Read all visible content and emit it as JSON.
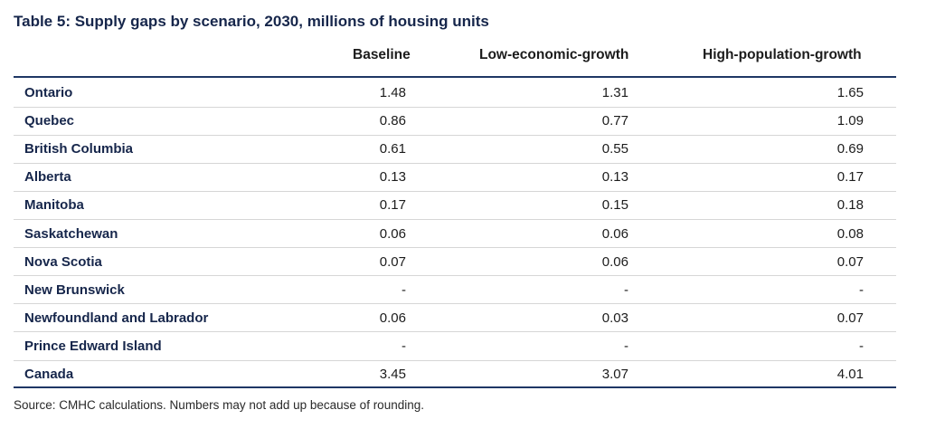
{
  "table": {
    "title": "Table 5: Supply gaps by scenario, 2030, millions of housing units",
    "columns": [
      "Baseline",
      "Low-economic-growth",
      "High-population-growth"
    ],
    "rows": [
      {
        "name": "Ontario",
        "baseline": "1.48",
        "low": "1.31",
        "high": "1.65"
      },
      {
        "name": "Quebec",
        "baseline": "0.86",
        "low": "0.77",
        "high": "1.09"
      },
      {
        "name": "British Columbia",
        "baseline": "0.61",
        "low": "0.55",
        "high": "0.69"
      },
      {
        "name": "Alberta",
        "baseline": "0.13",
        "low": "0.13",
        "high": "0.17"
      },
      {
        "name": "Manitoba",
        "baseline": "0.17",
        "low": "0.15",
        "high": "0.18"
      },
      {
        "name": "Saskatchewan",
        "baseline": "0.06",
        "low": "0.06",
        "high": "0.08"
      },
      {
        "name": "Nova Scotia",
        "baseline": "0.07",
        "low": "0.06",
        "high": "0.07"
      },
      {
        "name": "New Brunswick",
        "baseline": "-",
        "low": "-",
        "high": "-"
      },
      {
        "name": "Newfoundland and Labrador",
        "baseline": "0.06",
        "low": "0.03",
        "high": "0.07"
      },
      {
        "name": "Prince Edward Island",
        "baseline": "-",
        "low": "-",
        "high": "-"
      },
      {
        "name": "Canada",
        "baseline": "3.45",
        "low": "3.07",
        "high": "4.01"
      }
    ],
    "source": "Source: CMHC calculations. Numbers may not add up because of rounding."
  },
  "colors": {
    "title": "#16264b",
    "rule": "#1f3765",
    "divider": "#d6d6d6"
  }
}
